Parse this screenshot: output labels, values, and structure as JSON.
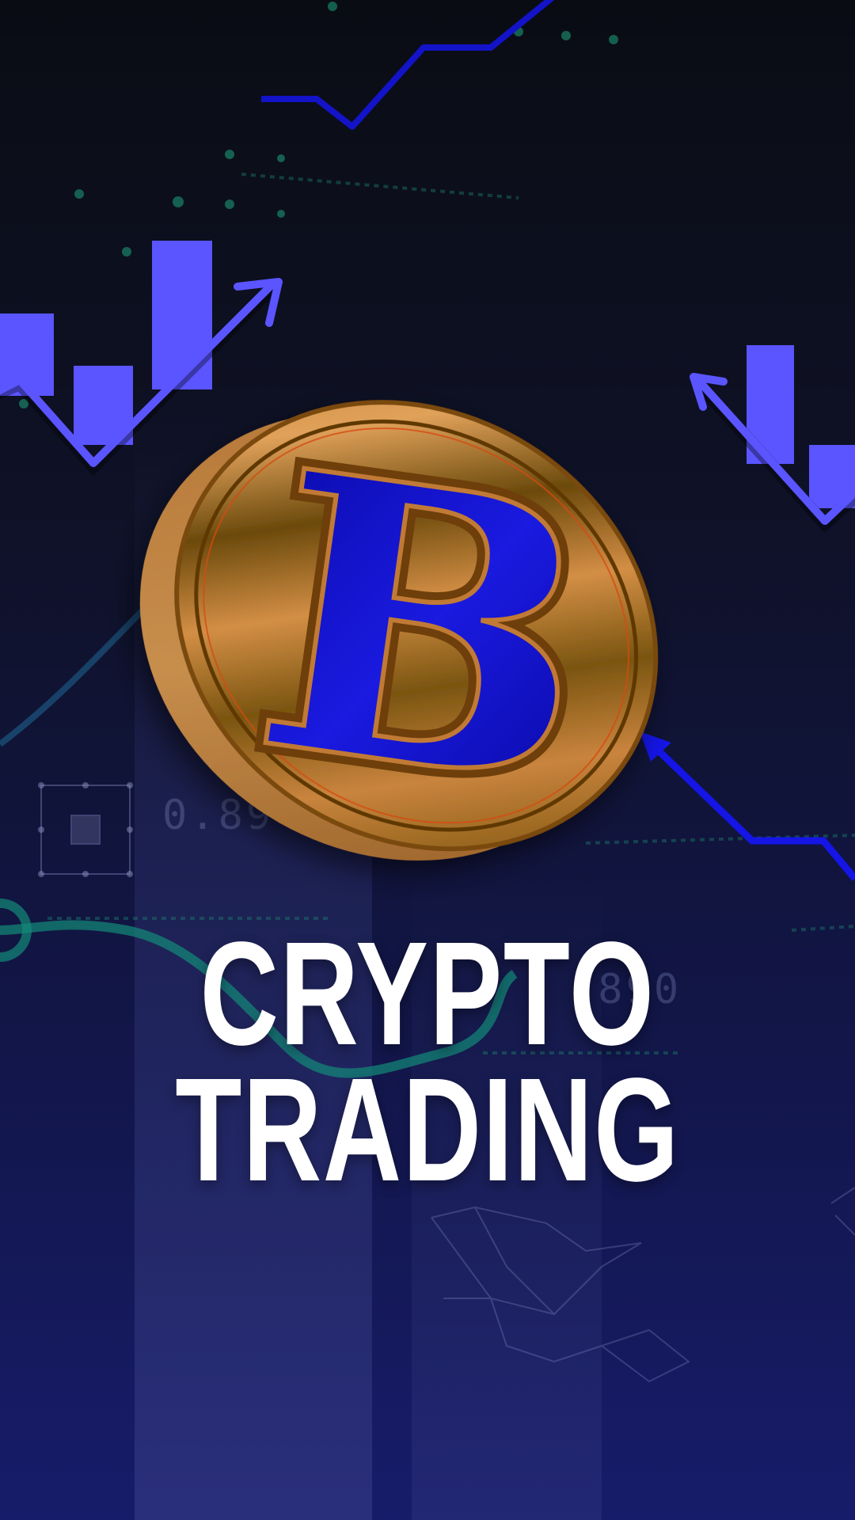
{
  "background": {
    "number_left": "0.89",
    "number_right": ".890"
  },
  "coin": {
    "symbol": "B",
    "gold_color": "#b8752e",
    "symbol_color": "#1010d0"
  },
  "headline": {
    "line1": "CRYPTO",
    "line2": "TRADING"
  },
  "colors": {
    "accent_purple": "#5a55ff",
    "accent_blue": "#1515e6",
    "accent_teal": "#12c4a0",
    "headline_text": "#ffffff"
  }
}
